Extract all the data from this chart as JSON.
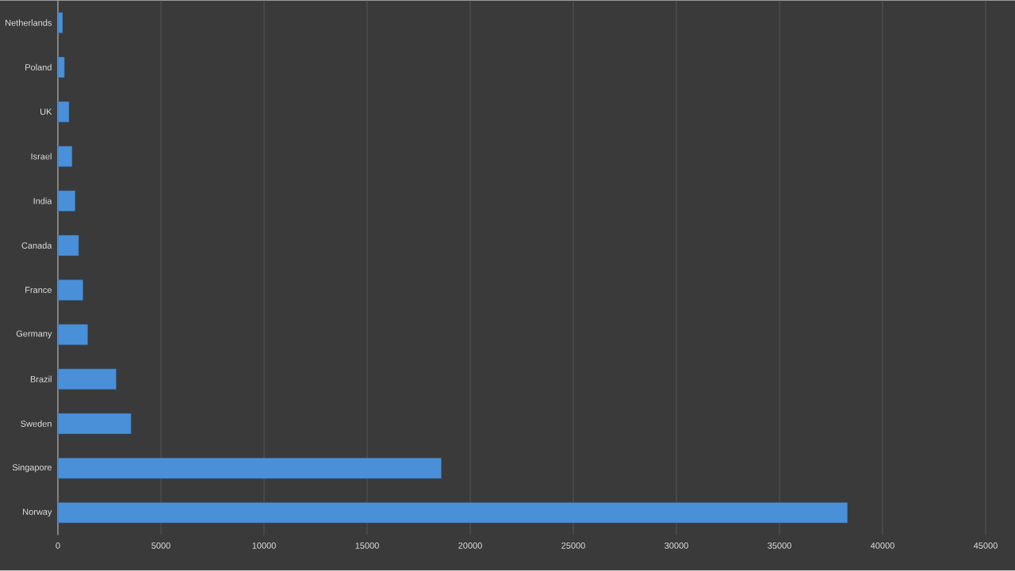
{
  "chart_data": {
    "type": "bar",
    "orientation": "horizontal",
    "categories": [
      "Netherlands",
      "Poland",
      "UK",
      "Israel",
      "India",
      "Canada",
      "France",
      "Germany",
      "Brazil",
      "Sweden",
      "Singapore",
      "Norway"
    ],
    "values": [
      230,
      320,
      540,
      690,
      840,
      1010,
      1220,
      1450,
      2830,
      3550,
      18600,
      38300
    ],
    "color": "#4a90d9",
    "xlim": [
      0,
      45000
    ],
    "xticks": [
      0,
      5000,
      10000,
      15000,
      20000,
      25000,
      30000,
      35000,
      40000,
      45000
    ],
    "grid": "x"
  }
}
